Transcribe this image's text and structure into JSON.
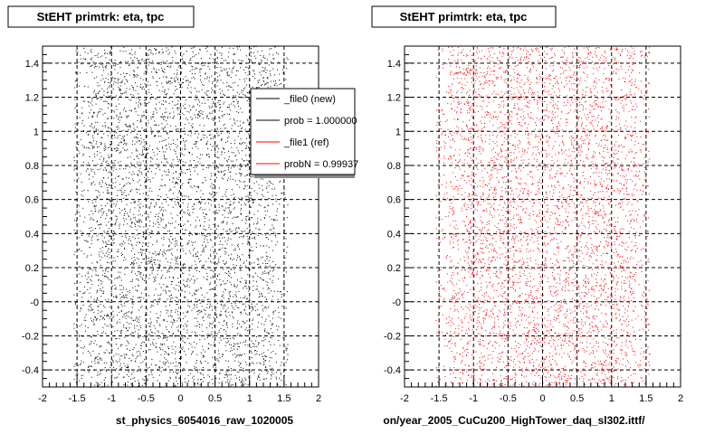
{
  "colors": {
    "background": "#ffffff",
    "axis": "#000000",
    "grid": "#000000",
    "series_new": "#000000",
    "series_ref": "#ff0000"
  },
  "footer_text": "",
  "chart_data": [
    {
      "type": "scatter",
      "title": "StEHT primtrk: eta, tpc",
      "xlabel": "st_physics_6054016_raw_1020005",
      "xlim": [
        -2,
        2
      ],
      "ylim": [
        -0.5,
        1.5
      ],
      "x_ticks": [
        -2,
        -1.5,
        -1,
        -0.5,
        0,
        0.5,
        1,
        1.5,
        2
      ],
      "x_tick_labels": [
        "-2",
        "-1.5",
        "-1",
        "-0.5",
        "0",
        "0.5",
        "1",
        "1.5",
        "2"
      ],
      "y_ticks": [
        -0.4,
        -0.2,
        0,
        0.2,
        0.4,
        0.6,
        0.8,
        1,
        1.2,
        1.4
      ],
      "y_tick_labels": [
        "-0.4",
        "-0.2",
        "-0",
        "0.2",
        "0.4",
        "0.6",
        "0.8",
        "1",
        "1.2",
        "1.4"
      ],
      "grid": true,
      "point_color": "#000000",
      "points_x_range": [
        -1.55,
        1.55
      ],
      "points_y_range": [
        -0.5,
        1.5
      ],
      "legend": {
        "placement": "top-right",
        "entries": [
          {
            "label": "_file0 (new)",
            "color": "#000000"
          },
          {
            "label": "prob = 1.000000",
            "color": "#000000"
          },
          {
            "label": "_file1 (ref)",
            "color": "#ff0000"
          },
          {
            "label": "probN = 0.99937",
            "color": "#ff0000"
          }
        ]
      }
    },
    {
      "type": "scatter",
      "title": "StEHT primtrk: eta, tpc",
      "xlabel": "on/year_2005_CuCu200_HighTower_daq_sl302.ittf/",
      "xlim": [
        -2,
        2
      ],
      "ylim": [
        -0.5,
        1.5
      ],
      "x_ticks": [
        -2,
        -1.5,
        -1,
        -0.5,
        0,
        0.5,
        1,
        1.5,
        2
      ],
      "x_tick_labels": [
        "-2",
        "-1.5",
        "-1",
        "-0.5",
        "0",
        "0.5",
        "1",
        "1.5",
        "2"
      ],
      "y_ticks": [
        -0.4,
        -0.2,
        0,
        0.2,
        0.4,
        0.6,
        0.8,
        1,
        1.2,
        1.4
      ],
      "y_tick_labels": [
        "-0.4",
        "-0.2",
        "-0",
        "0.2",
        "0.4",
        "0.6",
        "0.8",
        "1",
        "1.2",
        "1.4"
      ],
      "grid": true,
      "point_color": "#ff0000",
      "points_x_range": [
        -1.55,
        1.55
      ],
      "points_y_range": [
        -0.5,
        1.5
      ]
    }
  ]
}
